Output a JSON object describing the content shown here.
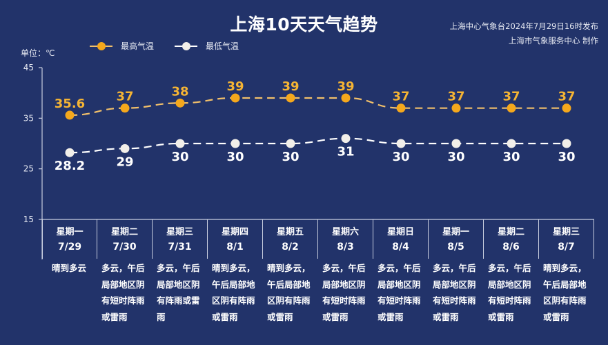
{
  "header": {
    "title": "上海10天天气趋势",
    "publisher_line1": "上海中心气象台2024年7月29日16时发布",
    "publisher_line2": "上海市气象服务中心 制作",
    "unit_label": "单位：℃"
  },
  "legend": {
    "high_label": "最高气温",
    "low_label": "最低气温"
  },
  "colors": {
    "background": "#22336a",
    "high": "#f5a81c",
    "high_line": "#f2c06a",
    "low": "#f2efe9",
    "axis": "#c9cfe0"
  },
  "days": [
    {
      "weekday": "星期一",
      "date": "7/29",
      "desc": "晴到多云"
    },
    {
      "weekday": "星期二",
      "date": "7/30",
      "desc": "多云，午后局部地区阴有短时阵雨或雷雨"
    },
    {
      "weekday": "星期三",
      "date": "7/31",
      "desc": "多云，午后局部地区阴有阵雨或雷雨"
    },
    {
      "weekday": "星期四",
      "date": "8/1",
      "desc": "晴到多云，午后局部地区阴有阵雨或雷雨"
    },
    {
      "weekday": "星期五",
      "date": "8/2",
      "desc": "晴到多云，午后局部地区阴有阵雨或雷雨"
    },
    {
      "weekday": "星期六",
      "date": "8/3",
      "desc": "多云，午后局部地区阴有短时阵雨或雷雨"
    },
    {
      "weekday": "星期日",
      "date": "8/4",
      "desc": "多云，午后局部地区阴有短时阵雨或雷雨"
    },
    {
      "weekday": "星期一",
      "date": "8/5",
      "desc": "多云，午后局部地区阴有短时阵雨或雷雨"
    },
    {
      "weekday": "星期二",
      "date": "8/6",
      "desc": "多云，午后局部地区阴有短时阵雨或雷雨"
    },
    {
      "weekday": "星期三",
      "date": "8/7",
      "desc": "晴到多云，午后局部地区阴有阵雨或雷雨"
    }
  ],
  "chart_data": {
    "type": "line",
    "title": "上海10天天气趋势",
    "ylabel": "单位：℃",
    "xlabel": "",
    "ylim": [
      15,
      45
    ],
    "yticks": [
      15,
      25,
      35,
      45
    ],
    "grid": false,
    "legend_position": "top-left",
    "categories": [
      "7/29",
      "7/30",
      "7/31",
      "8/1",
      "8/2",
      "8/3",
      "8/4",
      "8/5",
      "8/6",
      "8/7"
    ],
    "series": [
      {
        "name": "最高气温",
        "values": [
          35.6,
          37,
          38,
          39,
          39,
          39,
          37,
          37,
          37,
          37
        ],
        "labels": [
          "35.6",
          "37",
          "38",
          "39",
          "39",
          "39",
          "37",
          "37",
          "37",
          "37"
        ],
        "style": "dashed",
        "color": "#f5a81c"
      },
      {
        "name": "最低气温",
        "values": [
          28.2,
          29,
          30,
          30,
          30,
          31,
          30,
          30,
          30,
          30
        ],
        "labels": [
          "28.2",
          "29",
          "30",
          "30",
          "30",
          "31",
          "30",
          "30",
          "30",
          "30"
        ],
        "style": "dashed",
        "color": "#f2efe9"
      }
    ]
  }
}
